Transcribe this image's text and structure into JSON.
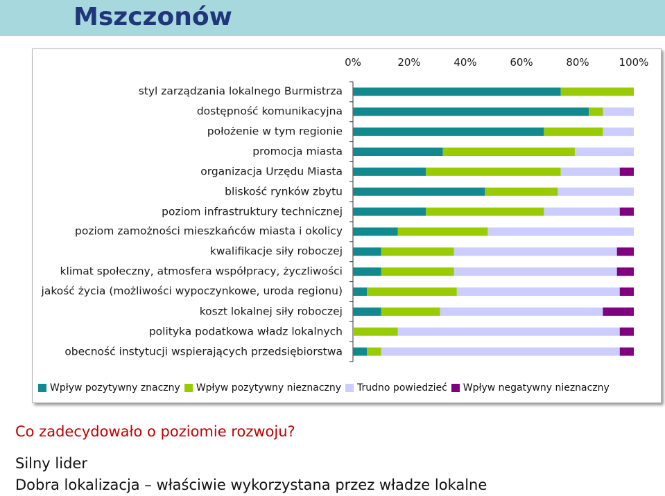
{
  "page": {
    "title": "Mszczonów",
    "question": "Co zadecydowało o poziomie rozwoju?",
    "answers": [
      "Silny lider",
      "Dobra lokalizacja – właściwie wykorzystana przez władze lokalne"
    ]
  },
  "colors": {
    "title_band": "#a6d8dd",
    "title_text": "#20357a",
    "question_text": "#c00000",
    "series": [
      "#118a8f",
      "#99cc00",
      "#ccccff",
      "#800080"
    ]
  },
  "chart_data": {
    "type": "bar",
    "orientation": "horizontal",
    "stacked": "percent",
    "title": "",
    "xlabel": "",
    "ylabel": "",
    "xlim": [
      0,
      100
    ],
    "x_ticks": [
      "0%",
      "20%",
      "40%",
      "60%",
      "80%",
      "100%"
    ],
    "legend_position": "bottom",
    "categories": [
      "styl zarządzania lokalnego Burmistrza",
      "dostępność komunikacyjna",
      "położenie w tym regionie",
      "promocja miasta",
      "organizacja Urzędu Miasta",
      "bliskość rynków zbytu",
      "poziom infrastruktury technicznej",
      "poziom zamożności mieszkańców miasta i okolicy",
      "kwalifikacje siły roboczej",
      "klimat społeczny, atmosfera współpracy, życzliwości",
      "jakość życia (możliwości wypoczynkowe, uroda regionu)",
      "koszt lokalnej siły roboczej",
      "polityka podatkowa władz lokalnych",
      "obecność instytucji wspierających przedsiębiorstwa"
    ],
    "series": [
      {
        "name": "Wpływ pozytywny znaczny",
        "values": [
          74,
          84,
          68,
          32,
          26,
          47,
          26,
          16,
          10,
          10,
          5,
          10,
          0,
          5
        ]
      },
      {
        "name": "Wpływ pozytywny nieznaczny",
        "values": [
          26,
          5,
          21,
          47,
          48,
          26,
          42,
          32,
          26,
          26,
          32,
          21,
          16,
          5
        ]
      },
      {
        "name": "Trudno powiedzieć",
        "values": [
          0,
          11,
          11,
          21,
          21,
          27,
          27,
          52,
          58,
          58,
          58,
          58,
          79,
          85
        ]
      },
      {
        "name": "Wpływ negatywny nieznaczny",
        "values": [
          0,
          0,
          0,
          0,
          5,
          0,
          5,
          0,
          6,
          6,
          5,
          11,
          5,
          5
        ]
      }
    ]
  }
}
